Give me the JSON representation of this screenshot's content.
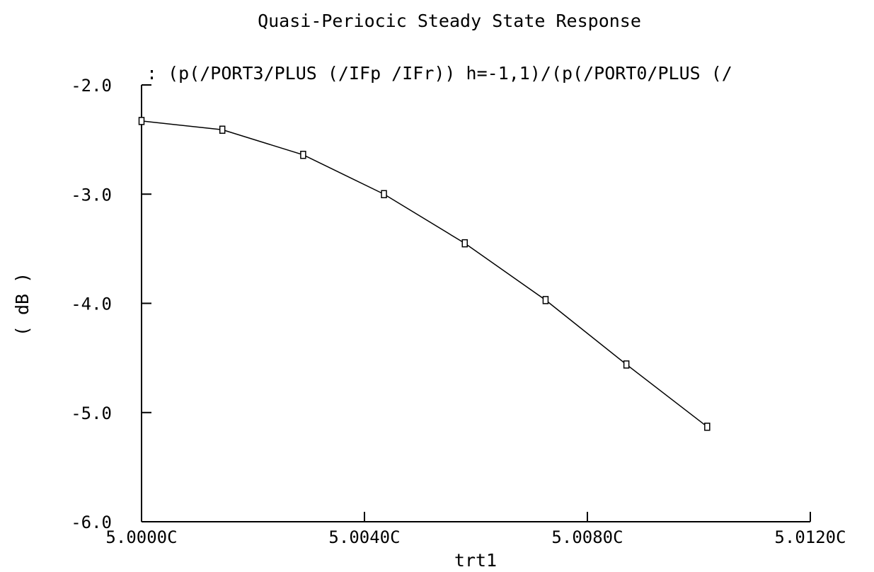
{
  "chart_data": {
    "type": "line",
    "title": "Quasi-Periocic Steady State Response",
    "subtitle": ":  (p(/PORT3/PLUS (/IFp /IFr)) h=-1,1)/(p(/PORT0/PLUS (/",
    "xlabel": "trt1",
    "ylabel": "( dB )",
    "xlim": [
      5.0,
      5.012
    ],
    "ylim": [
      -6.0,
      -2.0
    ],
    "x_ticks": [
      5.0,
      5.004,
      5.008,
      5.012
    ],
    "x_tick_labels": [
      "5.0000C",
      "5.0040C",
      "5.0080C",
      "5.0120C"
    ],
    "y_ticks": [
      -2.0,
      -3.0,
      -4.0,
      -5.0,
      -6.0
    ],
    "y_tick_labels": [
      "-2.0",
      "-3.0",
      "-4.0",
      "-5.0",
      "-6.0"
    ],
    "grid": false,
    "series": [
      {
        "x": [
          5.0,
          5.00145,
          5.0029,
          5.00435,
          5.0058,
          5.00725,
          5.0087,
          5.01015
        ],
        "y": [
          -2.33,
          -2.41,
          -2.64,
          -3.0,
          -3.45,
          -3.97,
          -4.56,
          -5.13
        ]
      }
    ]
  }
}
